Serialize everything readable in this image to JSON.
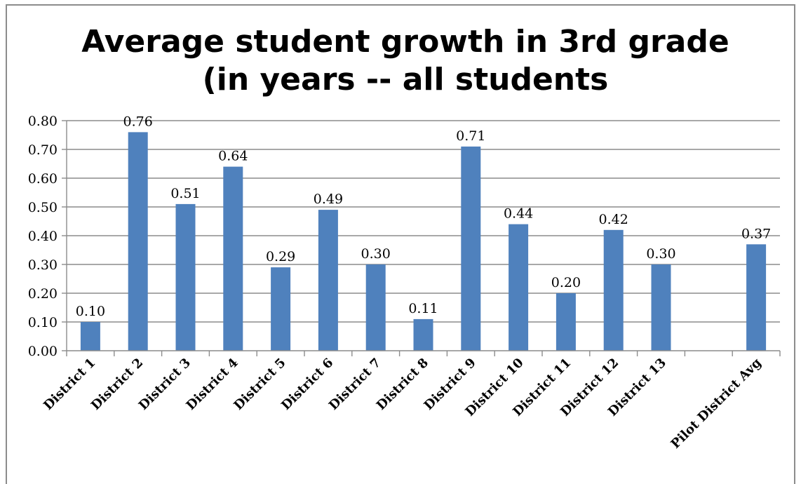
{
  "chart_data": {
    "type": "bar",
    "title": [
      "Average student growth in 3rd grade",
      "(in years -- all students"
    ],
    "categories": [
      "District 1",
      "District 2",
      "District 3",
      "District 4",
      "District 5",
      "District 6",
      "District 7",
      "District 8",
      "District 9",
      "District 10",
      "District 11",
      "District 12",
      "District 13",
      "",
      "Pilot District Avg"
    ],
    "values": [
      0.1,
      0.76,
      0.51,
      0.64,
      0.29,
      0.49,
      0.3,
      0.11,
      0.71,
      0.44,
      0.2,
      0.42,
      0.3,
      null,
      0.37
    ],
    "data_labels": [
      "0.10",
      "0.76",
      "0.51",
      "0.64",
      "0.29",
      "0.49",
      "0.30",
      "0.11",
      "0.71",
      "0.44",
      "0.20",
      "0.42",
      "0.30",
      "",
      "0.37"
    ],
    "yticks": [
      "0.00",
      "0.10",
      "0.20",
      "0.30",
      "0.40",
      "0.50",
      "0.60",
      "0.70",
      "0.80"
    ],
    "ylim": [
      0,
      0.8
    ],
    "grid": true,
    "legend": "none",
    "bar_color": "#4f81bd"
  }
}
